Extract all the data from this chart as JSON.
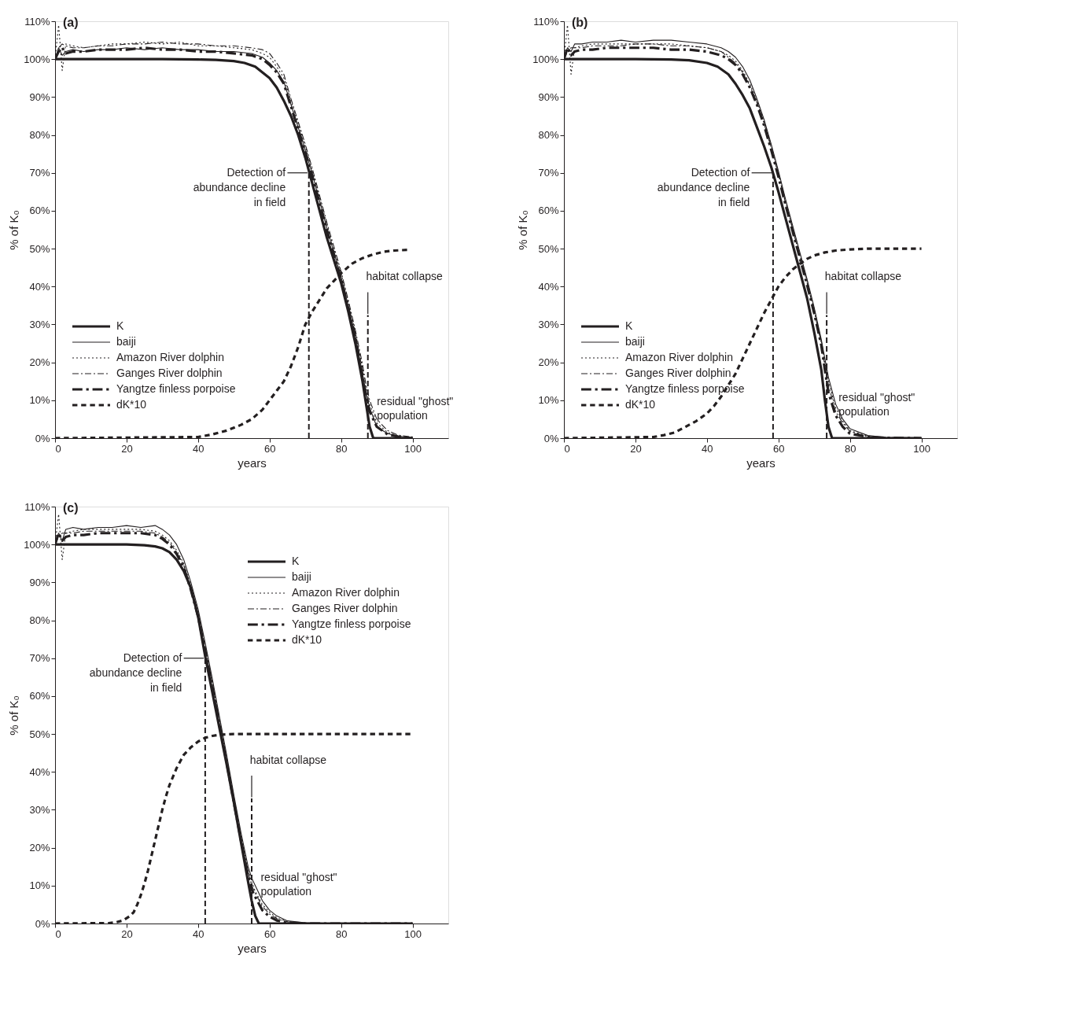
{
  "chart_data": [
    {
      "type": "line",
      "title": "(a)",
      "xlabel": "years",
      "ylabel": "% of K₀",
      "xlim": [
        0,
        110
      ],
      "ylim": [
        0,
        110
      ],
      "xticks": [
        0,
        20,
        40,
        60,
        80,
        100
      ],
      "yticks": [
        {
          "value": 0,
          "label": "0%"
        },
        {
          "value": 10,
          "label": "10%"
        },
        {
          "value": 20,
          "label": "20%"
        },
        {
          "value": 30,
          "label": "30%"
        },
        {
          "value": 40,
          "label": "40%"
        },
        {
          "value": 50,
          "label": "50%"
        },
        {
          "value": 60,
          "label": "60%"
        },
        {
          "value": 70,
          "label": "70%"
        },
        {
          "value": 80,
          "label": "80%"
        },
        {
          "value": 90,
          "label": "90%"
        },
        {
          "value": 100,
          "label": "100%"
        },
        {
          "value": 110,
          "label": "110%"
        }
      ],
      "grid": false,
      "legend": "bottom left",
      "marker": "none",
      "series": [
        {
          "name": "K",
          "color": "#231f20",
          "line_style": "solid",
          "x": [
            0,
            10,
            20,
            30,
            40,
            45,
            50,
            53,
            56,
            58,
            60,
            62,
            64,
            66,
            68,
            70,
            72,
            74,
            76,
            78,
            80,
            82,
            84,
            86,
            87,
            88,
            89,
            100
          ],
          "values": [
            100,
            100,
            100,
            100,
            99.9,
            99.8,
            99.5,
            99,
            98,
            96.5,
            95,
            92.5,
            89,
            85,
            80,
            74,
            67,
            60,
            53,
            47,
            41,
            33.5,
            25,
            15,
            9,
            3,
            0,
            0
          ]
        },
        {
          "name": "baiji",
          "color": "#231f20",
          "line_style": "solid",
          "x": [
            0,
            1,
            2,
            3,
            5,
            8,
            12,
            16,
            20,
            25,
            30,
            35,
            40,
            45,
            50,
            55,
            58,
            60,
            62,
            64,
            66,
            68,
            70,
            72,
            74,
            76,
            78,
            80,
            82,
            84,
            86,
            87,
            88,
            90,
            93,
            96,
            100
          ],
          "values": [
            100,
            103,
            101,
            102,
            102.5,
            102,
            102.5,
            102.5,
            103,
            102.5,
            103,
            102.5,
            102.5,
            102,
            102,
            101.5,
            100.5,
            99,
            97,
            94,
            88,
            82,
            76,
            69.5,
            62.5,
            55.5,
            49,
            42.5,
            35,
            27,
            17,
            12,
            8,
            3,
            1.2,
            0.5,
            0.2
          ]
        },
        {
          "name": "Amazon River dolphin",
          "color": "#231f20",
          "line_style": "dotted",
          "x": [
            0,
            1,
            2,
            3,
            5,
            8,
            12,
            16,
            20,
            25,
            30,
            35,
            40,
            45,
            50,
            55,
            58,
            60,
            62,
            64,
            66,
            68,
            70,
            72,
            74,
            76,
            78,
            80,
            82,
            84,
            86,
            87,
            88,
            90,
            93,
            96,
            100
          ],
          "values": [
            100,
            109,
            97,
            104,
            103.5,
            103,
            103.5,
            104,
            104,
            104.5,
            104,
            104.5,
            103.5,
            103.5,
            103,
            102.5,
            101.5,
            100.5,
            98,
            95,
            89,
            83,
            77,
            70.5,
            63.5,
            56.5,
            50,
            43.5,
            36,
            28,
            18.5,
            13,
            9,
            4,
            1.5,
            0.6,
            0.2
          ]
        },
        {
          "name": "Ganges River dolphin",
          "color": "#231f20",
          "line_style": "dashdot",
          "x": [
            0,
            1,
            2,
            3,
            5,
            8,
            12,
            16,
            20,
            25,
            30,
            35,
            40,
            45,
            50,
            55,
            58,
            60,
            62,
            64,
            66,
            68,
            70,
            72,
            74,
            76,
            78,
            80,
            82,
            84,
            86,
            87,
            88,
            90,
            93,
            96,
            100
          ],
          "values": [
            100,
            103,
            104,
            103.5,
            103,
            103,
            103.5,
            103.5,
            104,
            104,
            104.5,
            104,
            104,
            103.5,
            103.5,
            103,
            102.5,
            101.5,
            99,
            96,
            89.5,
            83.5,
            77.5,
            71,
            64,
            57,
            50.5,
            44,
            36.5,
            28.5,
            19.5,
            14,
            10,
            5,
            2,
            0.8,
            0.3
          ]
        },
        {
          "name": "Yangtze finless porpoise",
          "color": "#231f20",
          "line_style": "dashdot",
          "x": [
            0,
            1,
            2,
            3,
            5,
            8,
            12,
            16,
            20,
            25,
            30,
            35,
            40,
            45,
            50,
            55,
            58,
            60,
            62,
            64,
            66,
            68,
            70,
            72,
            74,
            76,
            78,
            80,
            82,
            84,
            86,
            87,
            88,
            90,
            93,
            96,
            100
          ],
          "values": [
            100,
            102,
            103,
            101.5,
            102,
            102,
            102.5,
            102.5,
            102.5,
            103,
            102.5,
            102.5,
            102,
            102,
            101.5,
            101,
            100,
            98.5,
            96.5,
            93.5,
            87.5,
            81.5,
            75.5,
            69,
            62,
            55,
            48.5,
            42,
            34.5,
            26.5,
            16.5,
            11,
            7,
            3,
            1,
            0.4,
            0.1
          ]
        },
        {
          "name": "dK*10",
          "color": "#231f20",
          "line_style": "dashed",
          "x": [
            0,
            40,
            44,
            48,
            52,
            55,
            58,
            60,
            62,
            64,
            66,
            68,
            70,
            72,
            74,
            76,
            78,
            80,
            83,
            86,
            89,
            92,
            95,
            99
          ],
          "values": [
            0,
            0.3,
            1,
            2,
            3.5,
            5,
            7.5,
            10,
            12.5,
            15,
            19,
            24,
            30,
            33.5,
            36.5,
            39.5,
            41.5,
            43.5,
            46,
            47.5,
            48.5,
            49.2,
            49.5,
            49.7
          ]
        }
      ],
      "ref_lines": [
        {
          "axis": "x",
          "value": 71
        },
        {
          "axis": "x",
          "value": 87.5
        }
      ],
      "annotations": [
        {
          "text": "Detection of\nabundance decline\nin field",
          "x": 71,
          "y": 70
        },
        {
          "text": "habitat collapse",
          "x": 87.5,
          "y": 32.5
        },
        {
          "text": "residual \"ghost\"\npopulation",
          "x": 86.5,
          "y": 11
        }
      ]
    },
    {
      "type": "line",
      "title": "(b)",
      "xlabel": "years",
      "ylabel": "% of K₀",
      "xlim": [
        0,
        110
      ],
      "ylim": [
        0,
        110
      ],
      "xticks": [
        0,
        20,
        40,
        60,
        80,
        100
      ],
      "yticks": [
        {
          "value": 0,
          "label": "0%"
        },
        {
          "value": 10,
          "label": "10%"
        },
        {
          "value": 20,
          "label": "20%"
        },
        {
          "value": 30,
          "label": "30%"
        },
        {
          "value": 40,
          "label": "40%"
        },
        {
          "value": 50,
          "label": "50%"
        },
        {
          "value": 60,
          "label": "60%"
        },
        {
          "value": 70,
          "label": "70%"
        },
        {
          "value": 80,
          "label": "80%"
        },
        {
          "value": 90,
          "label": "90%"
        },
        {
          "value": 100,
          "label": "100%"
        },
        {
          "value": 110,
          "label": "110%"
        }
      ],
      "grid": false,
      "legend": "bottom left",
      "marker": "none",
      "series": [
        {
          "name": "K",
          "color": "#231f20",
          "line_style": "solid",
          "x": [
            0,
            10,
            20,
            30,
            35,
            40,
            43,
            46,
            48,
            50,
            52,
            54,
            56,
            58,
            60,
            62,
            64,
            66,
            68,
            70,
            72,
            73,
            74,
            75,
            100
          ],
          "values": [
            100,
            100,
            100,
            99.9,
            99.7,
            99,
            98,
            96,
            93.5,
            90.5,
            87,
            82,
            77,
            71.5,
            65,
            58,
            51,
            44,
            37,
            28,
            18,
            10,
            3,
            0,
            0
          ]
        },
        {
          "name": "baiji",
          "color": "#231f20",
          "line_style": "solid",
          "x": [
            0,
            1,
            2,
            3,
            5,
            8,
            12,
            16,
            20,
            25,
            30,
            35,
            40,
            44,
            46,
            48,
            50,
            52,
            54,
            56,
            58,
            60,
            62,
            64,
            66,
            68,
            70,
            72,
            73,
            74,
            76,
            78,
            80,
            85,
            90,
            100
          ],
          "values": [
            100,
            103,
            102,
            104,
            104,
            104.5,
            104.5,
            105,
            104.5,
            105,
            105,
            104.5,
            104,
            103,
            102,
            100.5,
            98,
            94.5,
            89.5,
            84,
            77.5,
            70.5,
            63,
            56,
            49,
            42,
            34.5,
            26,
            21,
            16,
            9,
            5,
            2.5,
            0.7,
            0.2,
            0.1
          ]
        },
        {
          "name": "Amazon River dolphin",
          "color": "#231f20",
          "line_style": "dotted",
          "x": [
            0,
            1,
            2,
            3,
            5,
            8,
            12,
            16,
            20,
            25,
            30,
            35,
            40,
            44,
            46,
            48,
            50,
            52,
            54,
            56,
            58,
            60,
            62,
            64,
            66,
            68,
            70,
            72,
            73,
            74,
            76,
            78,
            80,
            85,
            90,
            100
          ],
          "values": [
            100,
            109,
            96,
            103,
            103.5,
            104,
            104,
            104,
            104,
            104,
            104,
            103.5,
            103,
            102,
            101,
            99.5,
            97,
            93.5,
            89,
            83.5,
            77,
            70,
            62.5,
            55.5,
            48.5,
            41.5,
            34,
            25.5,
            20,
            15,
            8,
            4.5,
            2,
            0.5,
            0.2,
            0
          ]
        },
        {
          "name": "Ganges River dolphin",
          "color": "#231f20",
          "line_style": "dashdot",
          "x": [
            0,
            1,
            2,
            3,
            5,
            8,
            12,
            16,
            20,
            25,
            30,
            35,
            40,
            44,
            46,
            48,
            50,
            52,
            54,
            56,
            58,
            60,
            62,
            64,
            66,
            68,
            70,
            72,
            73,
            74,
            76,
            78,
            80,
            85,
            90,
            100
          ],
          "values": [
            100,
            102,
            103,
            103,
            103,
            103.5,
            103.5,
            103.5,
            104,
            104,
            103.5,
            103.5,
            103,
            102,
            100.5,
            99,
            96.5,
            93,
            88.5,
            83,
            76.5,
            69.5,
            62,
            55,
            48,
            41,
            33.5,
            25,
            19,
            14,
            7,
            4,
            1.8,
            0.4,
            0.1,
            0
          ]
        },
        {
          "name": "Yangtze finless porpoise",
          "color": "#231f20",
          "line_style": "dashdot",
          "x": [
            0,
            1,
            2,
            3,
            5,
            8,
            12,
            16,
            20,
            25,
            30,
            35,
            40,
            44,
            46,
            48,
            50,
            52,
            54,
            56,
            58,
            60,
            62,
            64,
            66,
            68,
            70,
            72,
            73,
            74,
            76,
            78,
            80,
            85,
            90,
            100
          ],
          "values": [
            100,
            103,
            101,
            102,
            102.5,
            102.5,
            103,
            103,
            103,
            103,
            102.5,
            102.5,
            102,
            101,
            100,
            98.5,
            96,
            92.5,
            88,
            82.5,
            76,
            69,
            61.5,
            54.5,
            47.5,
            40.5,
            33,
            24.5,
            18,
            12,
            6,
            3,
            1.2,
            0.3,
            0.1,
            0
          ]
        },
        {
          "name": "dK*10",
          "color": "#231f20",
          "line_style": "dashed",
          "x": [
            0,
            25,
            28,
            31,
            34,
            37,
            40,
            42,
            44,
            46,
            48,
            50,
            52,
            54,
            56,
            58,
            60,
            62,
            64,
            66,
            68,
            70,
            73,
            76,
            80,
            85,
            90,
            100
          ],
          "values": [
            0,
            0.3,
            0.8,
            1.5,
            3,
            4.5,
            6.5,
            8.5,
            11,
            14,
            17,
            21,
            25,
            29,
            33,
            36.5,
            40,
            42.5,
            44.5,
            46,
            47.3,
            48.2,
            49,
            49.5,
            49.8,
            50,
            50,
            50
          ]
        }
      ],
      "ref_lines": [
        {
          "axis": "x",
          "value": 58.5
        },
        {
          "axis": "x",
          "value": 73.5
        }
      ],
      "annotations": [
        {
          "text": "Detection of\nabundance decline\nin field",
          "x": 58.5,
          "y": 70
        },
        {
          "text": "habitat collapse",
          "x": 73.5,
          "y": 32.5
        },
        {
          "text": "residual \"ghost\"\npopulation",
          "x": 73.3,
          "y": 12
        }
      ]
    },
    {
      "type": "line",
      "title": "(c)",
      "xlabel": "years",
      "ylabel": "% of K₀",
      "xlim": [
        0,
        110
      ],
      "ylim": [
        0,
        110
      ],
      "xticks": [
        0,
        20,
        40,
        60,
        80,
        100
      ],
      "yticks": [
        {
          "value": 0,
          "label": "0%"
        },
        {
          "value": 10,
          "label": "10%"
        },
        {
          "value": 20,
          "label": "20%"
        },
        {
          "value": 30,
          "label": "30%"
        },
        {
          "value": 40,
          "label": "40%"
        },
        {
          "value": 50,
          "label": "50%"
        },
        {
          "value": 60,
          "label": "60%"
        },
        {
          "value": 70,
          "label": "70%"
        },
        {
          "value": 80,
          "label": "80%"
        },
        {
          "value": 90,
          "label": "90%"
        },
        {
          "value": 100,
          "label": "100%"
        },
        {
          "value": 110,
          "label": "110%"
        }
      ],
      "grid": false,
      "legend": "top right",
      "marker": "none",
      "series": [
        {
          "name": "K",
          "color": "#231f20",
          "line_style": "solid",
          "x": [
            0,
            10,
            20,
            25,
            28,
            30,
            32,
            34,
            36,
            38,
            40,
            42,
            44,
            46,
            48,
            50,
            52,
            54,
            55,
            56,
            57,
            100
          ],
          "values": [
            100,
            100,
            100,
            99.8,
            99.5,
            99,
            98,
            96,
            93,
            88.5,
            81,
            70.5,
            61,
            51.5,
            42,
            32,
            21.5,
            11,
            6,
            2,
            0,
            0
          ]
        },
        {
          "name": "baiji",
          "color": "#231f20",
          "line_style": "solid",
          "x": [
            0,
            1,
            2,
            3,
            5,
            8,
            12,
            16,
            20,
            24,
            28,
            30,
            32,
            34,
            36,
            38,
            40,
            42,
            44,
            46,
            48,
            50,
            52,
            54,
            55,
            56,
            58,
            60,
            62,
            65,
            70,
            80,
            100
          ],
          "values": [
            100,
            103,
            101,
            104,
            104.5,
            104,
            104.5,
            104.5,
            105,
            104.5,
            105,
            104,
            102.5,
            100,
            96,
            90,
            83,
            74,
            64.5,
            54.5,
            44.5,
            34,
            24,
            15,
            12,
            10,
            6,
            3.5,
            2,
            0.7,
            0.2,
            0,
            0
          ]
        },
        {
          "name": "Amazon River dolphin",
          "color": "#231f20",
          "line_style": "dotted",
          "x": [
            0,
            1,
            2,
            3,
            5,
            8,
            12,
            16,
            20,
            24,
            28,
            30,
            32,
            34,
            36,
            38,
            40,
            42,
            44,
            46,
            48,
            50,
            52,
            54,
            55,
            56,
            58,
            60,
            62,
            65,
            70,
            80,
            100
          ],
          "values": [
            100,
            108,
            96,
            103,
            103.5,
            104,
            104,
            104,
            104,
            104,
            103.5,
            102.5,
            101,
            98.5,
            95,
            89,
            82,
            73,
            63.5,
            53.5,
            43.5,
            33,
            23,
            14,
            11,
            8.5,
            5,
            3,
            1.5,
            0.5,
            0.1,
            0,
            0
          ]
        },
        {
          "name": "Ganges River dolphin",
          "color": "#231f20",
          "line_style": "dashdot",
          "x": [
            0,
            1,
            2,
            3,
            5,
            8,
            12,
            16,
            20,
            24,
            28,
            30,
            32,
            34,
            36,
            38,
            40,
            42,
            44,
            46,
            48,
            50,
            52,
            54,
            55,
            56,
            58,
            60,
            62,
            65,
            70,
            80,
            100
          ],
          "values": [
            100,
            102,
            103,
            103,
            103,
            103.5,
            103.5,
            103.5,
            103.5,
            103.5,
            103,
            102,
            100.5,
            98,
            94.5,
            88.5,
            81.5,
            72.5,
            63,
            53,
            43,
            32.5,
            22.5,
            13.5,
            10,
            8,
            4.5,
            2.5,
            1.3,
            0.4,
            0.1,
            0,
            0
          ]
        },
        {
          "name": "Yangtze finless porpoise",
          "color": "#231f20",
          "line_style": "dashdot",
          "x": [
            0,
            1,
            2,
            3,
            5,
            8,
            12,
            16,
            20,
            24,
            28,
            30,
            32,
            34,
            36,
            38,
            40,
            42,
            44,
            46,
            48,
            50,
            52,
            54,
            55,
            56,
            58,
            60,
            62,
            65,
            70,
            80,
            100
          ],
          "values": [
            100,
            103,
            101,
            102,
            102.5,
            102.5,
            103,
            103,
            103,
            103,
            102.5,
            101.5,
            100,
            97.5,
            94,
            88,
            81,
            72,
            62.5,
            52.5,
            42.5,
            32,
            22,
            12.5,
            9,
            7,
            3.5,
            1.8,
            0.8,
            0.2,
            0,
            0,
            0
          ]
        },
        {
          "name": "dK*10",
          "color": "#231f20",
          "line_style": "dashed",
          "x": [
            0,
            15,
            17,
            19,
            21,
            22,
            23,
            24,
            25,
            26,
            27,
            28,
            29,
            30,
            31,
            32,
            34,
            36,
            38,
            40,
            42,
            44,
            46,
            50,
            60,
            100
          ],
          "values": [
            0,
            0.1,
            0.3,
            0.8,
            2,
            3,
            5,
            7.5,
            10.5,
            14,
            18,
            22,
            26,
            30,
            33.5,
            36.5,
            41,
            44.5,
            46.5,
            48,
            49,
            49.5,
            49.8,
            50,
            50,
            50
          ]
        }
      ],
      "ref_lines": [
        {
          "axis": "x",
          "value": 42
        },
        {
          "axis": "x",
          "value": 55
        }
      ],
      "annotations": [
        {
          "text": "Detection of\nabundance decline\nin field",
          "x": 42,
          "y": 70
        },
        {
          "text": "habitat collapse",
          "x": 55,
          "y": 33
        },
        {
          "text": "residual \"ghost\"\npopulation",
          "x": 54,
          "y": 13.5
        }
      ]
    }
  ]
}
